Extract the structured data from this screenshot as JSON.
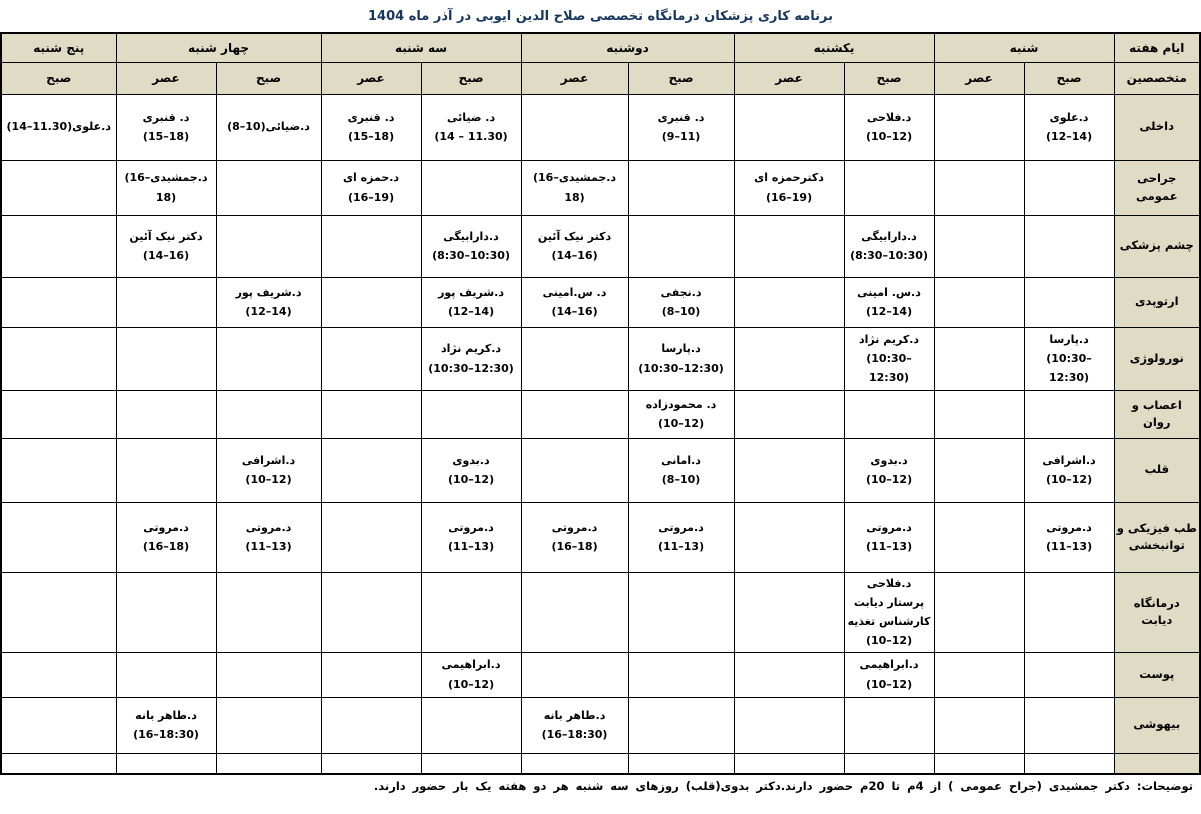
{
  "title": "برنامه کاری پزشکان درمانگاه تخصصی  صلاح الدین ایوبی در آذر ماه  1404",
  "footer_note": "توضیحات: دکتر جمشیدی (جراح عمومی ) از 4م تا 20م حضور دارند.دکتر بدوی(قلب) روزهای سه شنبه هر دو هفته یک بار حضور دارند.",
  "colors": {
    "header_bg": "#DFDBC4",
    "title_text": "#17365D",
    "border": "#000000",
    "cell_bg": "#FFFFFF"
  },
  "table": {
    "corner_top": "ایام هفته",
    "corner_bottom": "متخصصین",
    "days": [
      {
        "label": "شنبه",
        "sessions": [
          "صبح",
          "عصر"
        ]
      },
      {
        "label": "یکشنبه",
        "sessions": [
          "صبح",
          "عصر"
        ]
      },
      {
        "label": "دوشنبه",
        "sessions": [
          "صبح",
          "عصر"
        ]
      },
      {
        "label": "سه شنبه",
        "sessions": [
          "صبح",
          "عصر"
        ]
      },
      {
        "label": "چهار شنبه",
        "sessions": [
          "صبح",
          "عصر"
        ]
      },
      {
        "label": "پنج شنبه",
        "sessions": [
          "صبح"
        ]
      }
    ],
    "column_keys": [
      "شنبه-صبح",
      "شنبه-عصر",
      "یکشنبه-صبح",
      "یکشنبه-عصر",
      "دوشنبه-صبح",
      "دوشنبه-عصر",
      "سه شنبه-صبح",
      "سه شنبه-عصر",
      "چهار شنبه-صبح",
      "چهار شنبه-عصر",
      "پنج شنبه-صبح"
    ],
    "rows": [
      {
        "specialty": "داخلی",
        "cells": [
          {
            "names": [
              "د.علوی"
            ],
            "time": "(12–14)"
          },
          null,
          {
            "names": [
              "د.فلاحی"
            ],
            "time": "(10–12)"
          },
          null,
          {
            "names": [
              "د. قنبری"
            ],
            "time": "(9–11)"
          },
          null,
          {
            "names": [
              "د. ضیائی"
            ],
            "time": "(14 – 11.30)"
          },
          {
            "names": [
              "د. قنبری"
            ],
            "time": "(15–18)"
          },
          {
            "names": [
              "د.ضیائی"
            ],
            "time": "(8–10)",
            "inline": true
          },
          {
            "names": [
              "د. قنبری"
            ],
            "time": "(15–18)"
          },
          {
            "names": [
              "د.علوی"
            ],
            "time": "(14–11.30)",
            "inline": true
          }
        ]
      },
      {
        "specialty": "جراحی عمومی",
        "cells": [
          null,
          null,
          null,
          {
            "names": [
              "دکترحمزه ای"
            ],
            "time": "(16–19)"
          },
          null,
          {
            "names": [
              "د.جمشیدی"
            ],
            "time": "(16–18)",
            "inline": true
          },
          null,
          {
            "names": [
              "د.حمزه ای"
            ],
            "time": "(16–19)"
          },
          null,
          {
            "names": [
              "د.جمشیدی"
            ],
            "time": "(16–18)",
            "inline": true
          },
          null
        ]
      },
      {
        "specialty": "چشم پزشکی",
        "cells": [
          null,
          null,
          {
            "names": [
              "د.دارابیگی"
            ],
            "time": "(8:30–10:30)"
          },
          null,
          null,
          {
            "names": [
              "دکتر نیک آئین"
            ],
            "time": "(14–16)"
          },
          {
            "names": [
              "د.دارابیگی"
            ],
            "time": "(8:30–10:30)"
          },
          null,
          null,
          {
            "names": [
              "دکتر نیک آئین"
            ],
            "time": "(14–16)"
          },
          null
        ]
      },
      {
        "specialty": "ارتوپدی",
        "cells": [
          null,
          null,
          {
            "names": [
              "د.س. امینی"
            ],
            "time": "(12–14)"
          },
          null,
          {
            "names": [
              "د.نجفی"
            ],
            "time": "(8–10)"
          },
          {
            "names": [
              "د. س.امینی"
            ],
            "time": "(14–16)"
          },
          {
            "names": [
              "د.شریف پور"
            ],
            "time": "(12–14)"
          },
          null,
          {
            "names": [
              "د.شریف پور"
            ],
            "time": "(12–14)"
          },
          null,
          null
        ]
      },
      {
        "specialty": "نورولوژی",
        "cells": [
          {
            "names": [
              "د.پارسا"
            ],
            "time": "(10:30–12:30)"
          },
          null,
          {
            "names": [
              "د.کریم نژاد"
            ],
            "time": "(10:30–12:30)"
          },
          null,
          {
            "names": [
              "د.پارسا"
            ],
            "time": "(10:30–12:30)"
          },
          null,
          {
            "names": [
              "د.کریم نژاد"
            ],
            "time": "(10:30–12:30)"
          },
          null,
          null,
          null,
          null
        ]
      },
      {
        "specialty": "اعصاب و روان",
        "cells": [
          null,
          null,
          null,
          null,
          {
            "names": [
              "د. محمودزاده"
            ],
            "time": "(10–12)"
          },
          null,
          null,
          null,
          null,
          null,
          null
        ]
      },
      {
        "specialty": "قلب",
        "cells": [
          {
            "names": [
              "د.اشرافی"
            ],
            "time": "(10–12)"
          },
          null,
          {
            "names": [
              "د.بدوی"
            ],
            "time": "(10–12)"
          },
          null,
          {
            "names": [
              "د.امانی"
            ],
            "time": "(8–10)"
          },
          null,
          {
            "names": [
              "د.بدوی"
            ],
            "time": "(10–12)"
          },
          null,
          {
            "names": [
              "د.اشرافی"
            ],
            "time": "(10–12)"
          },
          null,
          null
        ]
      },
      {
        "specialty": "طب فیزیکی و توانبخشی",
        "cells": [
          {
            "names": [
              "د.مروتی"
            ],
            "time": "(11–13)"
          },
          null,
          {
            "names": [
              "د.مروتی"
            ],
            "time": "(11–13)"
          },
          null,
          {
            "names": [
              "د.مروتی"
            ],
            "time": "(11–13)"
          },
          {
            "names": [
              "د.مروتی"
            ],
            "time": "(16–18)"
          },
          {
            "names": [
              "د.مروتی"
            ],
            "time": "(11–13)"
          },
          null,
          {
            "names": [
              "د.مروتی"
            ],
            "time": "(11–13)"
          },
          {
            "names": [
              "د.مروتی"
            ],
            "time": "(16–18)"
          },
          null
        ]
      },
      {
        "specialty": "درمانگاه دیابت",
        "cells": [
          null,
          null,
          {
            "names": [
              "د.فلاحی",
              "پرستار دیابت",
              "کارشناس تغذیه"
            ],
            "time": "(10–12)"
          },
          null,
          null,
          null,
          null,
          null,
          null,
          null,
          null
        ]
      },
      {
        "specialty": "پوست",
        "cells": [
          null,
          null,
          {
            "names": [
              "د.ابراهیمی"
            ],
            "time": "(10–12)"
          },
          null,
          null,
          null,
          {
            "names": [
              "د.ابراهیمی"
            ],
            "time": "(10–12)"
          },
          null,
          null,
          null,
          null
        ]
      },
      {
        "specialty": "بیهوشی",
        "cells": [
          null,
          null,
          null,
          null,
          null,
          {
            "names": [
              "د.طاهر بانه"
            ],
            "time": "(16–18:30)"
          },
          null,
          null,
          null,
          {
            "names": [
              "د.طاهر بانه"
            ],
            "time": "(16–18:30)"
          },
          null
        ]
      },
      {
        "specialty": "",
        "cells": [
          null,
          null,
          null,
          null,
          null,
          null,
          null,
          null,
          null,
          null,
          null
        ]
      }
    ]
  }
}
